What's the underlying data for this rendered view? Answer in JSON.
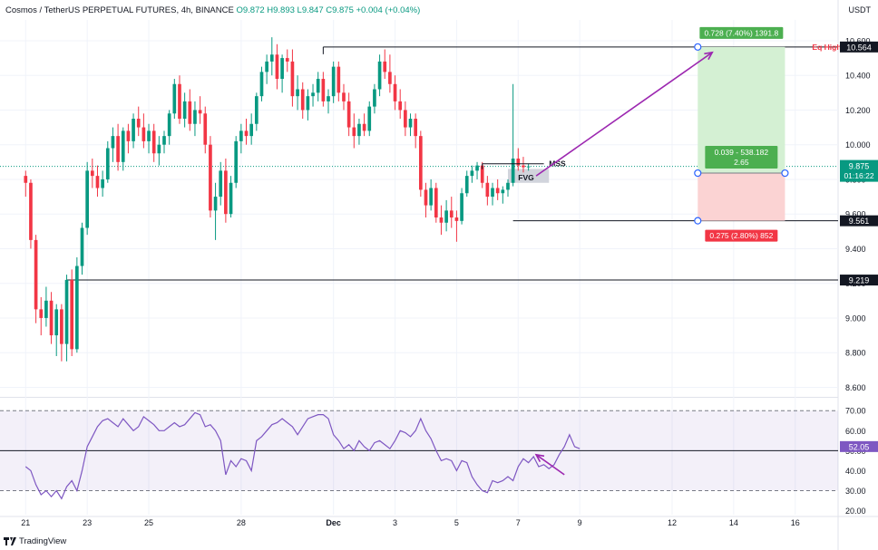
{
  "header": {
    "symbol": "Cosmos / TetherUS PERPETUAL FUTURES, 4h, BINANCE",
    "ohlc": "O9.872 H9.893 L9.847 C9.875 +0.004 (+0.04%)"
  },
  "price_unit": "USDT",
  "watermark": "TradingView",
  "colors": {
    "up": "#089981",
    "down": "#f23645",
    "rsi": "#7e57c2",
    "target_fill": "#d4f0d3",
    "stop_fill": "#fbd3d3",
    "target_label": "#4caf50",
    "stop_label": "#f23645"
  },
  "chart_data": [
    {
      "type": "candlestick",
      "title": "",
      "y_ticks": [
        "10.600",
        "10.400",
        "10.200",
        "10.000",
        "9.800",
        "9.600",
        "9.400",
        "9.200",
        "9.000",
        "8.800",
        "8.600"
      ],
      "ylim": [
        8.55,
        10.72
      ],
      "x_ticks": [
        {
          "label": "21",
          "x": 0
        },
        {
          "label": "23",
          "x": 12
        },
        {
          "label": "25",
          "x": 24
        },
        {
          "label": "28",
          "x": 42
        },
        {
          "label": "Dec",
          "x": 60
        },
        {
          "label": "3",
          "x": 72
        },
        {
          "label": "5",
          "x": 84
        },
        {
          "label": "7",
          "x": 96
        },
        {
          "label": "9",
          "x": 108
        },
        {
          "label": "12",
          "x": 126
        },
        {
          "label": "14",
          "x": 138
        },
        {
          "label": "16",
          "x": 150
        }
      ],
      "xlim": [
        -5,
        158
      ],
      "candles": [
        [
          9.82,
          9.85,
          9.7,
          9.78
        ],
        [
          9.78,
          9.8,
          9.4,
          9.45
        ],
        [
          9.45,
          9.48,
          8.97,
          9.05
        ],
        [
          9.05,
          9.12,
          8.9,
          9.0
        ],
        [
          9.0,
          9.18,
          8.95,
          9.1
        ],
        [
          9.1,
          9.15,
          8.85,
          8.9
        ],
        [
          8.9,
          9.08,
          8.78,
          9.05
        ],
        [
          9.05,
          9.08,
          8.75,
          8.85
        ],
        [
          8.85,
          9.25,
          8.75,
          9.22
        ],
        [
          9.22,
          9.28,
          8.78,
          8.82
        ],
        [
          8.82,
          9.35,
          8.8,
          9.3
        ],
        [
          9.3,
          9.55,
          9.25,
          9.52
        ],
        [
          9.52,
          9.9,
          9.48,
          9.85
        ],
        [
          9.85,
          9.92,
          9.75,
          9.82
        ],
        [
          9.82,
          9.88,
          9.7,
          9.75
        ],
        [
          9.75,
          9.85,
          9.7,
          9.8
        ],
        [
          9.8,
          10.02,
          9.78,
          9.98
        ],
        [
          9.98,
          10.1,
          9.9,
          10.05
        ],
        [
          10.05,
          10.12,
          9.85,
          9.9
        ],
        [
          9.9,
          10.1,
          9.85,
          10.08
        ],
        [
          10.08,
          10.12,
          9.95,
          10.02
        ],
        [
          10.02,
          10.18,
          9.98,
          10.15
        ],
        [
          10.15,
          10.22,
          10.05,
          10.1
        ],
        [
          10.1,
          10.18,
          9.98,
          10.02
        ],
        [
          10.02,
          10.12,
          9.95,
          10.08
        ],
        [
          10.08,
          10.12,
          9.9,
          9.95
        ],
        [
          9.95,
          10.05,
          9.88,
          10.0
        ],
        [
          10.0,
          10.08,
          9.95,
          10.05
        ],
        [
          10.05,
          10.2,
          10.0,
          10.18
        ],
        [
          10.18,
          10.38,
          10.15,
          10.35
        ],
        [
          10.35,
          10.4,
          10.12,
          10.15
        ],
        [
          10.15,
          10.3,
          10.1,
          10.25
        ],
        [
          10.25,
          10.32,
          10.08,
          10.12
        ],
        [
          10.12,
          10.25,
          10.05,
          10.2
        ],
        [
          10.2,
          10.28,
          10.12,
          10.18
        ],
        [
          10.18,
          10.22,
          9.95,
          10.0
        ],
        [
          10.0,
          10.05,
          9.58,
          9.62
        ],
        [
          9.62,
          9.78,
          9.45,
          9.7
        ],
        [
          9.7,
          9.9,
          9.65,
          9.85
        ],
        [
          9.85,
          9.92,
          9.55,
          9.6
        ],
        [
          9.6,
          9.82,
          9.58,
          9.78
        ],
        [
          9.78,
          10.05,
          9.75,
          10.02
        ],
        [
          10.02,
          10.12,
          9.95,
          10.08
        ],
        [
          10.08,
          10.15,
          10.0,
          10.05
        ],
        [
          10.05,
          10.18,
          10.0,
          10.12
        ],
        [
          10.12,
          10.3,
          10.08,
          10.28
        ],
        [
          10.28,
          10.45,
          10.25,
          10.42
        ],
        [
          10.42,
          10.52,
          10.35,
          10.48
        ],
        [
          10.48,
          10.62,
          10.4,
          10.52
        ],
        [
          10.52,
          10.58,
          10.32,
          10.38
        ],
        [
          10.38,
          10.52,
          10.3,
          10.5
        ],
        [
          10.5,
          10.55,
          10.42,
          10.48
        ],
        [
          10.48,
          10.55,
          10.22,
          10.28
        ],
        [
          10.28,
          10.4,
          10.2,
          10.32
        ],
        [
          10.32,
          10.36,
          10.15,
          10.2
        ],
        [
          10.2,
          10.32,
          10.14,
          10.28
        ],
        [
          10.28,
          10.35,
          10.22,
          10.3
        ],
        [
          10.3,
          10.42,
          10.25,
          10.38
        ],
        [
          10.38,
          10.42,
          10.22,
          10.25
        ],
        [
          10.25,
          10.32,
          10.18,
          10.28
        ],
        [
          10.28,
          10.48,
          10.24,
          10.45
        ],
        [
          10.45,
          10.48,
          10.25,
          10.3
        ],
        [
          10.3,
          10.35,
          10.2,
          10.25
        ],
        [
          10.25,
          10.3,
          10.05,
          10.1
        ],
        [
          10.1,
          10.18,
          9.98,
          10.05
        ],
        [
          10.05,
          10.15,
          10.0,
          10.12
        ],
        [
          10.12,
          10.18,
          10.05,
          10.08
        ],
        [
          10.08,
          10.25,
          10.05,
          10.22
        ],
        [
          10.22,
          10.35,
          10.18,
          10.32
        ],
        [
          10.32,
          10.52,
          10.28,
          10.48
        ],
        [
          10.48,
          10.55,
          10.38,
          10.42
        ],
        [
          10.42,
          10.52,
          10.3,
          10.35
        ],
        [
          10.35,
          10.4,
          10.2,
          10.25
        ],
        [
          10.25,
          10.32,
          10.15,
          10.2
        ],
        [
          10.2,
          10.25,
          10.05,
          10.1
        ],
        [
          10.1,
          10.18,
          10.05,
          10.15
        ],
        [
          10.15,
          10.18,
          9.98,
          10.05
        ],
        [
          10.05,
          10.08,
          9.7,
          9.74
        ],
        [
          9.74,
          9.78,
          9.58,
          9.65
        ],
        [
          9.65,
          9.8,
          9.62,
          9.75
        ],
        [
          9.75,
          9.78,
          9.55,
          9.58
        ],
        [
          9.58,
          9.65,
          9.48,
          9.55
        ],
        [
          9.55,
          9.68,
          9.5,
          9.62
        ],
        [
          9.62,
          9.7,
          9.52,
          9.58
        ],
        [
          9.58,
          9.62,
          9.44,
          9.56
        ],
        [
          9.56,
          9.75,
          9.54,
          9.72
        ],
        [
          9.72,
          9.85,
          9.7,
          9.82
        ],
        [
          9.82,
          9.88,
          9.78,
          9.85
        ],
        [
          9.85,
          9.9,
          9.8,
          9.88
        ],
        [
          9.88,
          9.9,
          9.75,
          9.78
        ],
        [
          9.78,
          9.82,
          9.65,
          9.7
        ],
        [
          9.7,
          9.78,
          9.65,
          9.75
        ],
        [
          9.75,
          9.8,
          9.68,
          9.72
        ],
        [
          9.72,
          9.76,
          9.66,
          9.74
        ],
        [
          9.74,
          9.8,
          9.7,
          9.78
        ],
        [
          9.78,
          10.35,
          9.76,
          9.92
        ],
        [
          9.92,
          9.98,
          9.85,
          9.88
        ],
        [
          9.88,
          9.93,
          9.84,
          9.87
        ],
        [
          9.87,
          9.89,
          9.85,
          9.875
        ]
      ],
      "hlines": [
        {
          "value": 10.564,
          "label": "10.564",
          "from": 58
        },
        {
          "value": 9.561,
          "label": "9.561",
          "from": 95
        },
        {
          "value": 9.219,
          "label": "9.219",
          "from": 8
        }
      ],
      "current_price": {
        "value": 9.875,
        "label": "9.875",
        "countdown": "01:16:22"
      },
      "eq_highs_label": "Eq Highs",
      "mss_label": "MSS",
      "fvg_label": "FVG",
      "position": {
        "entry": 9.836,
        "target": 10.564,
        "stop": 9.561,
        "x_start": 131,
        "x_end": 148,
        "target_text": "0.728 (7.40%) 1391.8",
        "center_text_1": "0.039 - 538.182",
        "center_text_2": "2.65",
        "stop_text": "0.275 (2.80%) 852"
      }
    },
    {
      "type": "line",
      "title": "",
      "y_ticks": [
        "70.00",
        "60.00",
        "50.00",
        "40.00",
        "30.00",
        "20.00"
      ],
      "ylim": [
        18,
        76
      ],
      "band": [
        30,
        70
      ],
      "midline": 50,
      "current": {
        "value": 52.05,
        "label": "52.05"
      },
      "values": [
        42,
        40,
        33,
        28,
        30,
        27,
        30,
        26,
        32,
        35,
        30,
        40,
        52,
        57,
        62,
        65,
        66,
        64,
        62,
        66,
        63,
        60,
        62,
        67,
        65,
        63,
        60,
        60,
        62,
        64,
        62,
        63,
        66,
        69,
        68,
        62,
        63,
        60,
        55,
        38,
        45,
        42,
        46,
        45,
        40,
        55,
        57,
        60,
        63,
        64,
        66,
        64,
        62,
        58,
        62,
        66,
        67,
        68,
        68,
        66,
        58,
        55,
        51,
        53,
        50,
        55,
        52,
        50,
        54,
        55,
        53,
        51,
        55,
        60,
        59,
        57,
        60,
        66,
        60,
        56,
        50,
        45,
        46,
        45,
        40,
        45,
        44,
        37,
        33,
        30,
        29,
        35,
        34,
        35,
        37,
        35,
        42,
        46,
        44,
        47,
        42,
        43,
        41,
        43,
        48,
        52,
        58,
        52,
        51
      ]
    }
  ]
}
